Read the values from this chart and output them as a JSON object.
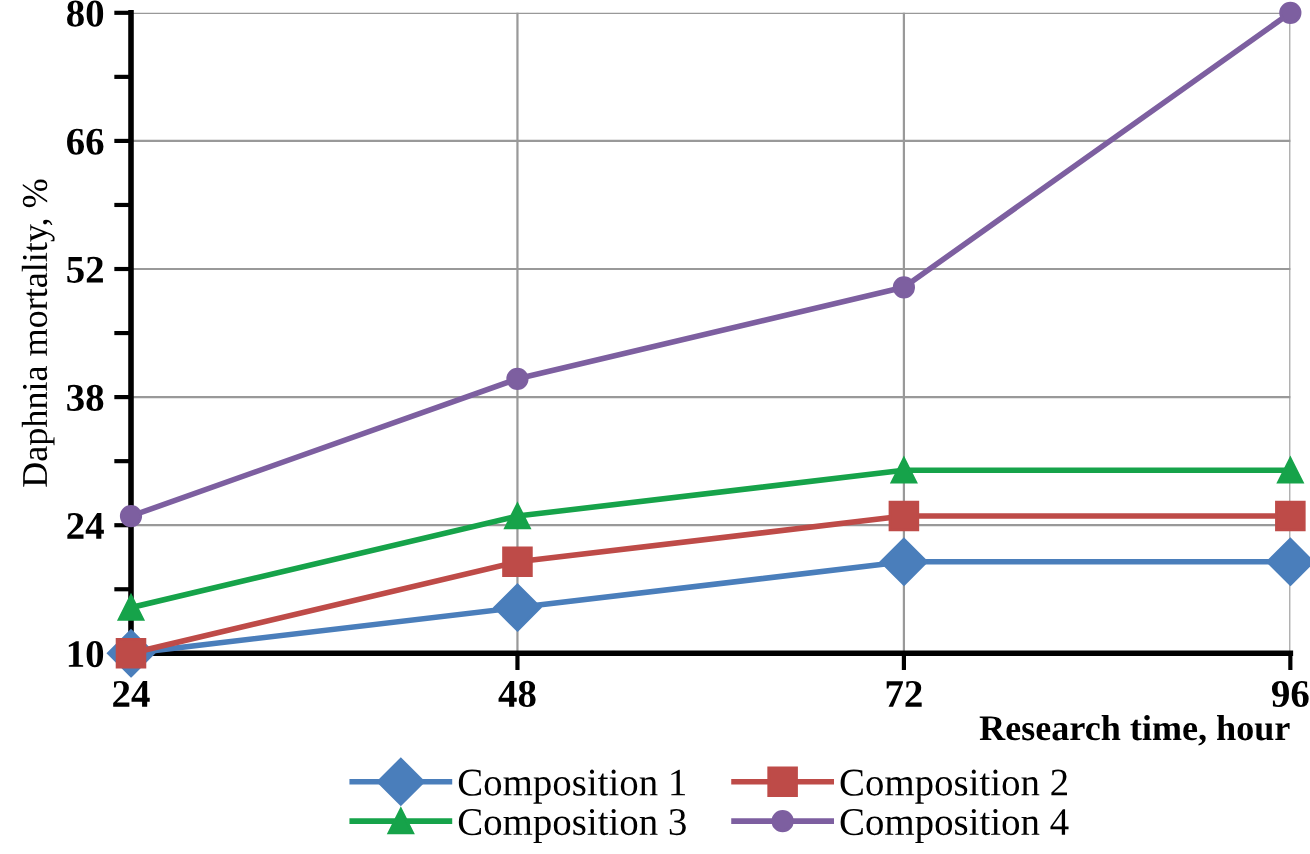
{
  "chart_data": {
    "type": "line",
    "xlabel": "Research time, hour",
    "ylabel": "Daphnia mortality, %",
    "x": [
      24,
      48,
      72,
      96
    ],
    "xlim": [
      24,
      96
    ],
    "xticks": [
      24,
      48,
      72,
      96
    ],
    "ylim": [
      10,
      80
    ],
    "yticks": [
      10,
      {
        "value": 17,
        "label": null
      },
      24,
      {
        "value": 31,
        "label": null
      },
      38,
      {
        "value": 45,
        "label": null
      },
      52,
      {
        "value": 59,
        "label": null
      },
      66,
      {
        "value": 73,
        "label": null
      },
      80
    ],
    "grid": true,
    "legend": "bottom",
    "line_style": "solid",
    "series": [
      {
        "name": "Composition 1",
        "color": "#4a7ebb",
        "marker": "diamond",
        "values": [
          10,
          15,
          20,
          20
        ]
      },
      {
        "name": "Composition 2",
        "color": "#be4b48",
        "marker": "square",
        "values": [
          10,
          20,
          25,
          25
        ]
      },
      {
        "name": "Composition 3",
        "color": "#16a34a",
        "marker": "triangle",
        "values": [
          15,
          25,
          30,
          30
        ]
      },
      {
        "name": "Composition 4",
        "color": "#7d5fa0",
        "marker": "circle",
        "values": [
          25,
          40,
          50,
          80
        ]
      }
    ]
  }
}
